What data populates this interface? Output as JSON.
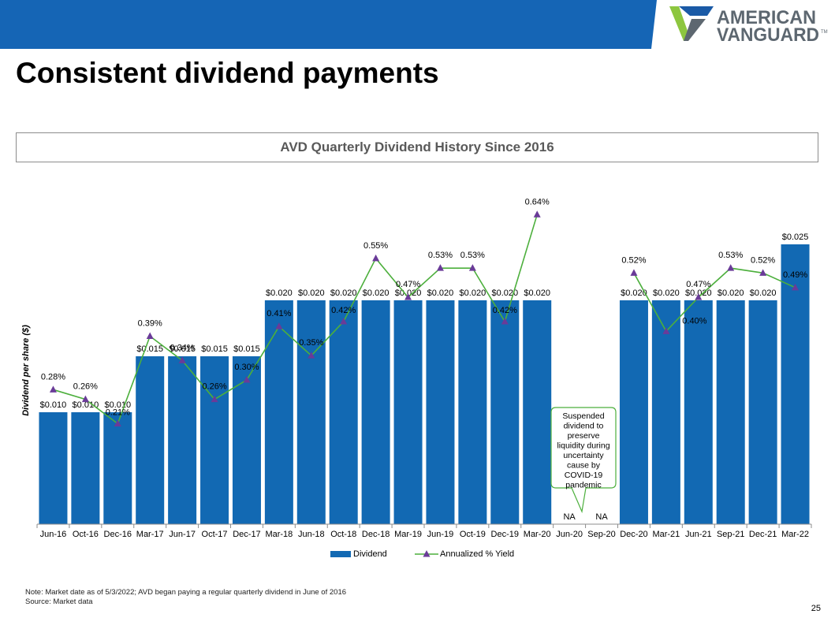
{
  "page": {
    "title": "Consistent dividend payments",
    "page_number": "25",
    "note_lines": [
      "Note: Market date as of 5/3/2022; AVD began paying a regular quarterly dividend in June of 2016",
      "Source: Market data"
    ]
  },
  "logo": {
    "line1": "AMERICAN",
    "line2": "VANGUARD",
    "mark": "TM"
  },
  "colors": {
    "band": "#1565b5",
    "bar": "#1269b3",
    "line": "#4caf3c",
    "marker": "#6a3b98",
    "logo_green": "#8dc63f",
    "logo_blue": "#1a5aa6",
    "logo_gray": "#5d6770"
  },
  "chart_data": {
    "type": "bar",
    "title": "AVD Quarterly Dividend History Since 2016",
    "ylabel": "Dividend per share ($)",
    "categories": [
      "Jun-16",
      "Oct-16",
      "Dec-16",
      "Mar-17",
      "Jun-17",
      "Oct-17",
      "Dec-17",
      "Mar-18",
      "Jun-18",
      "Oct-18",
      "Dec-18",
      "Mar-19",
      "Jun-19",
      "Oct-19",
      "Dec-19",
      "Mar-20",
      "Jun-20",
      "Sep-20",
      "Dec-20",
      "Mar-21",
      "Jun-21",
      "Sep-21",
      "Dec-21",
      "Mar-22"
    ],
    "series": [
      {
        "name": "Dividend",
        "type": "bar",
        "values": [
          0.01,
          0.01,
          0.01,
          0.015,
          0.015,
          0.015,
          0.015,
          0.02,
          0.02,
          0.02,
          0.02,
          0.02,
          0.02,
          0.02,
          0.02,
          0.02,
          null,
          null,
          0.02,
          0.02,
          0.02,
          0.02,
          0.02,
          0.025
        ],
        "labels": [
          "$0.010",
          "$0.010",
          "$0.010",
          "$0.015",
          "$0.015",
          "$0.015",
          "$0.015",
          "$0.020",
          "$0.020",
          "$0.020",
          "$0.020",
          "$0.020",
          "$0.020",
          "$0.020",
          "$0.020",
          "$0.020",
          "NA",
          "NA",
          "$0.020",
          "$0.020",
          "$0.020",
          "$0.020",
          "$0.020",
          "$0.025"
        ]
      },
      {
        "name": "Annualized % Yield",
        "type": "line",
        "values": [
          0.28,
          0.26,
          0.21,
          0.39,
          0.34,
          0.26,
          0.3,
          0.41,
          0.35,
          0.42,
          0.55,
          0.47,
          0.53,
          0.53,
          0.42,
          0.64,
          null,
          null,
          0.52,
          0.4,
          0.47,
          0.53,
          0.52,
          0.49
        ],
        "labels": [
          "0.28%",
          "0.26%",
          "0.21%",
          "0.39%",
          "0.34%",
          "0.26%",
          "0.30%",
          "0.41%",
          "0.35%",
          "0.42%",
          "0.55%",
          "0.47%",
          "0.53%",
          "0.53%",
          "0.42%",
          "0.64%",
          "",
          "",
          "0.52%",
          "0.40%",
          "0.47%",
          "0.53%",
          "0.52%",
          "0.49%"
        ]
      }
    ],
    "annotation": "Suspended dividend to preserve liquidity during uncertainty cause by COVID-19 pandemic",
    "legend_position": "bottom",
    "grid": false
  }
}
